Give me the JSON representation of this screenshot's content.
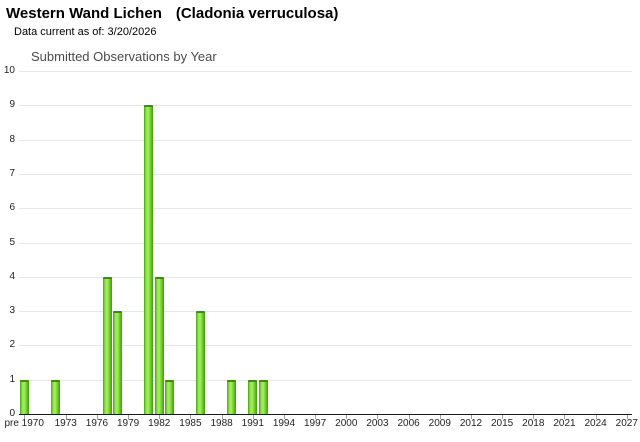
{
  "header": {
    "title": "Western Wand Lichen",
    "scientific_name": "(Cladonia verruculosa)",
    "data_current": "Data current as of: 3/20/2026"
  },
  "chart_data": {
    "type": "bar",
    "title": "Submitted Observations by Year",
    "xlabel": "",
    "ylabel": "",
    "ylim": [
      0,
      10
    ],
    "y_ticks": [
      0,
      1,
      2,
      3,
      4,
      5,
      6,
      7,
      8,
      9,
      10
    ],
    "x_first_category": "pre 1970",
    "x_year_range": [
      1970,
      2027
    ],
    "x_tick_labels": [
      "pre 1970",
      "1973",
      "1976",
      "1979",
      "1982",
      "1985",
      "1988",
      "1991",
      "1994",
      "1997",
      "2000",
      "2003",
      "2006",
      "2009",
      "2012",
      "2015",
      "2018",
      "2021",
      "2024",
      "2027"
    ],
    "points": [
      {
        "x": "pre 1970",
        "y": 1
      },
      {
        "x": "1972",
        "y": 1
      },
      {
        "x": "1977",
        "y": 4
      },
      {
        "x": "1978",
        "y": 3
      },
      {
        "x": "1981",
        "y": 9
      },
      {
        "x": "1982",
        "y": 4
      },
      {
        "x": "1983",
        "y": 1
      },
      {
        "x": "1986",
        "y": 3
      },
      {
        "x": "1989",
        "y": 1
      },
      {
        "x": "1991",
        "y": 1
      },
      {
        "x": "1992",
        "y": 1
      }
    ],
    "grid": true,
    "legend": "none",
    "gridline_color": "#e7e7e7",
    "axis_color": "#1a1a1a",
    "bar_gradient": [
      "#46a215",
      "#8fdf49",
      "#a9ee66",
      "#77d236",
      "#3f9a10"
    ],
    "bar_cap_color": "#389008"
  }
}
